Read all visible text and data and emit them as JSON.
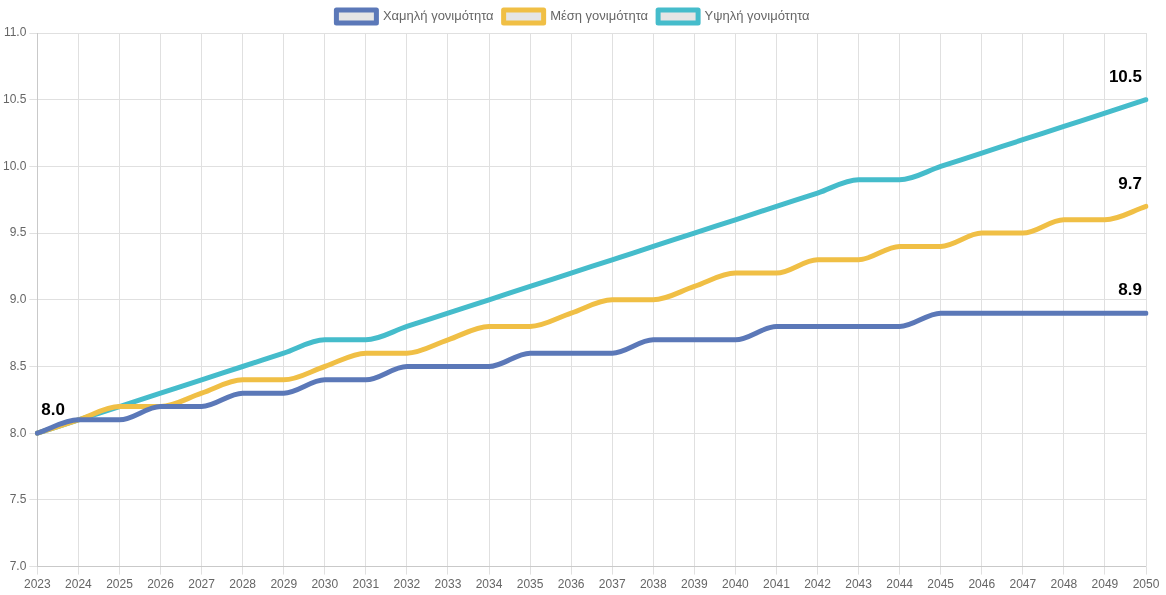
{
  "chart_data": {
    "type": "line",
    "categories": [
      "2023",
      "2024",
      "2025",
      "2026",
      "2027",
      "2028",
      "2029",
      "2030",
      "2031",
      "2032",
      "2033",
      "2034",
      "2035",
      "2036",
      "2037",
      "2038",
      "2039",
      "2040",
      "2041",
      "2042",
      "2043",
      "2044",
      "2045",
      "2046",
      "2047",
      "2048",
      "2049",
      "2050"
    ],
    "series": [
      {
        "name": "Χαμηλή γονιμότητα",
        "color": "#5b78b8",
        "values": [
          8.0,
          8.1,
          8.1,
          8.2,
          8.2,
          8.3,
          8.3,
          8.4,
          8.4,
          8.5,
          8.5,
          8.5,
          8.6,
          8.6,
          8.6,
          8.7,
          8.7,
          8.7,
          8.8,
          8.8,
          8.8,
          8.8,
          8.9,
          8.9,
          8.9,
          8.9,
          8.9,
          8.9
        ],
        "value_labels": [
          "8.0",
          null,
          null,
          null,
          null,
          null,
          null,
          null,
          null,
          null,
          null,
          null,
          null,
          null,
          null,
          null,
          null,
          null,
          null,
          null,
          null,
          null,
          null,
          null,
          null,
          null,
          null,
          "8.9"
        ]
      },
      {
        "name": "Μέση γονιμότητα",
        "color": "#f0bf45",
        "values": [
          8.0,
          8.1,
          8.2,
          8.2,
          8.3,
          8.4,
          8.4,
          8.5,
          8.6,
          8.6,
          8.7,
          8.8,
          8.8,
          8.9,
          9.0,
          9.0,
          9.1,
          9.2,
          9.2,
          9.3,
          9.3,
          9.4,
          9.4,
          9.5,
          9.5,
          9.6,
          9.6,
          9.7
        ],
        "value_labels": [
          null,
          null,
          null,
          null,
          null,
          null,
          null,
          null,
          null,
          null,
          null,
          null,
          null,
          null,
          null,
          null,
          null,
          null,
          null,
          null,
          null,
          null,
          null,
          null,
          null,
          null,
          null,
          "9.7"
        ]
      },
      {
        "name": "Υψηλή γονιμότητα",
        "color": "#45bccb",
        "values": [
          8.0,
          8.1,
          8.2,
          8.3,
          8.4,
          8.5,
          8.6,
          8.7,
          8.7,
          8.8,
          8.9,
          9.0,
          9.1,
          9.2,
          9.3,
          9.4,
          9.5,
          9.6,
          9.7,
          9.8,
          9.9,
          9.9,
          10.0,
          10.1,
          10.2,
          10.3,
          10.4,
          10.5
        ],
        "value_labels": [
          null,
          null,
          null,
          null,
          null,
          null,
          null,
          null,
          null,
          null,
          null,
          null,
          null,
          null,
          null,
          null,
          null,
          null,
          null,
          null,
          null,
          null,
          null,
          null,
          null,
          null,
          null,
          "10.5"
        ]
      }
    ],
    "ylim": [
      7,
      11
    ],
    "yticks": [
      {
        "value": 7,
        "label": "7.0"
      },
      {
        "value": 7.5,
        "label": "7.5"
      },
      {
        "value": 8,
        "label": "8.0"
      },
      {
        "value": 8.5,
        "label": "8.5"
      },
      {
        "value": 9,
        "label": "9.0"
      },
      {
        "value": 9.5,
        "label": "9.5"
      },
      {
        "value": 10,
        "label": "10.0"
      },
      {
        "value": 10.5,
        "label": "10.5"
      },
      {
        "value": 11,
        "label": "11.0"
      }
    ],
    "grid": true,
    "legend": "top",
    "marker": "none",
    "line_style": "solid"
  }
}
